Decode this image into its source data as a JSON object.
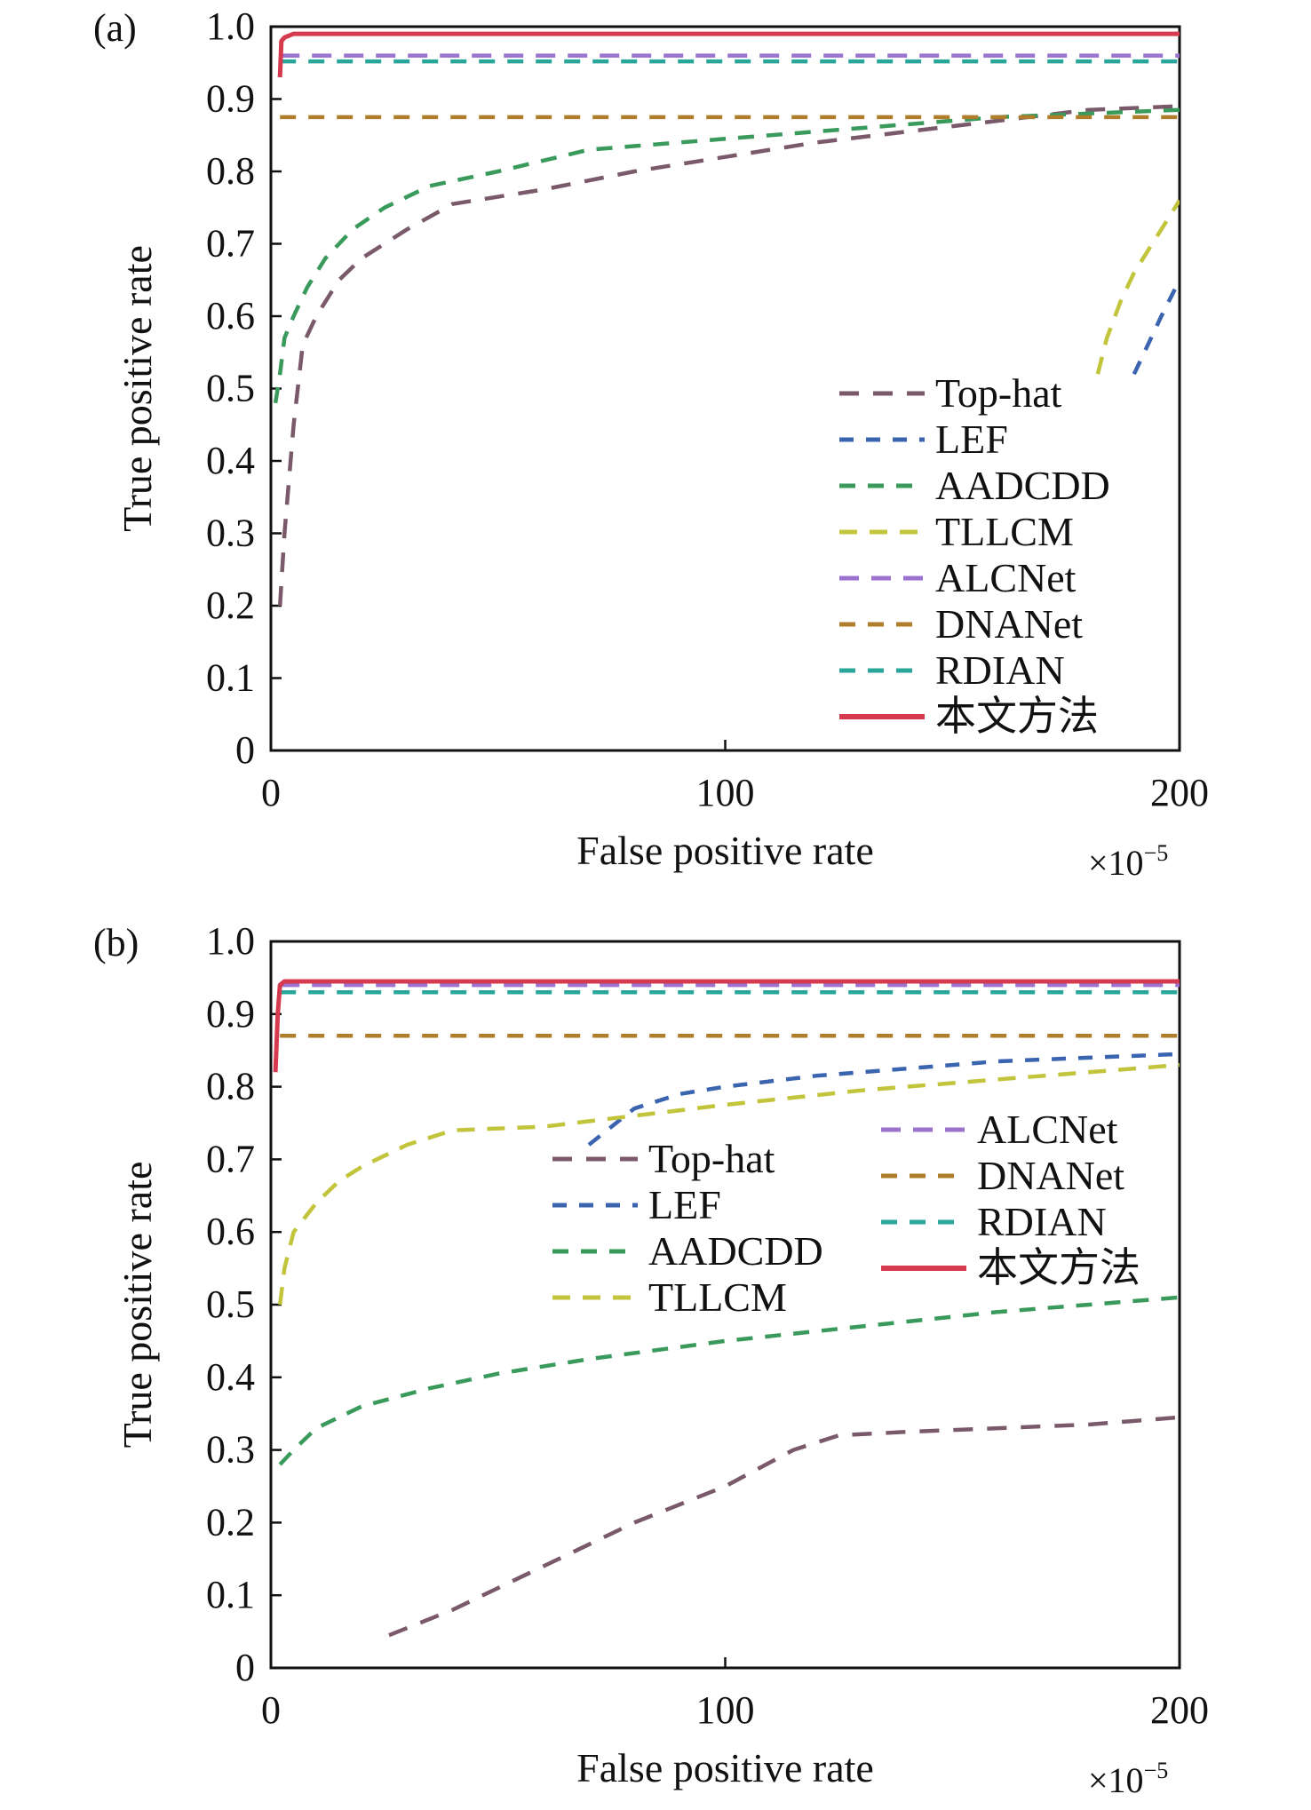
{
  "legend_cjk_label": "本文方法",
  "chart_data": [
    {
      "type": "line",
      "panel_label": "(a)",
      "xlabel": "False positive rate",
      "ylabel": "True positive rate",
      "x_scale_note": "×10",
      "x_scale_exponent": "−5",
      "xlim": [
        0,
        200
      ],
      "ylim": [
        0,
        1.0
      ],
      "x_ticks": [
        "0",
        "100",
        "200"
      ],
      "y_ticks": [
        "0",
        "0.1",
        "0.2",
        "0.3",
        "0.4",
        "0.5",
        "0.6",
        "0.7",
        "0.8",
        "0.9",
        "1.0"
      ],
      "legend_position": "lower-right",
      "series": [
        {
          "name": "Top-hat",
          "color": "#7a5a6a",
          "style": "dashed",
          "x": [
            2,
            3,
            5,
            7,
            10,
            15,
            20,
            30,
            40,
            60,
            80,
            100,
            120,
            140,
            160,
            180,
            200
          ],
          "y": [
            0.2,
            0.3,
            0.45,
            0.56,
            0.6,
            0.65,
            0.68,
            0.72,
            0.755,
            0.775,
            0.8,
            0.82,
            0.84,
            0.855,
            0.87,
            0.885,
            0.89
          ]
        },
        {
          "name": "LEF",
          "color": "#3b64b0",
          "style": "dashed",
          "x": [
            190,
            193,
            196,
            200
          ],
          "y": [
            0.52,
            0.56,
            0.6,
            0.65
          ]
        },
        {
          "name": "AADCDD",
          "color": "#3a9a5c",
          "style": "dashed",
          "x": [
            1,
            2,
            3,
            5,
            8,
            12,
            18,
            25,
            35,
            50,
            70,
            100,
            130,
            160,
            200
          ],
          "y": [
            0.48,
            0.52,
            0.57,
            0.6,
            0.64,
            0.68,
            0.72,
            0.75,
            0.78,
            0.8,
            0.83,
            0.845,
            0.86,
            0.875,
            0.885
          ]
        },
        {
          "name": "TLLCM",
          "color": "#c2c43c",
          "style": "dashed",
          "x": [
            182,
            184,
            187,
            190,
            194,
            197,
            200
          ],
          "y": [
            0.52,
            0.57,
            0.62,
            0.66,
            0.7,
            0.73,
            0.76
          ]
        },
        {
          "name": "ALCNet",
          "color": "#9b72cf",
          "style": "dashed",
          "x": [
            2,
            200
          ],
          "y": [
            0.96,
            0.96
          ]
        },
        {
          "name": "DNANet",
          "color": "#b07d2a",
          "style": "dashed",
          "x": [
            2,
            200
          ],
          "y": [
            0.875,
            0.875
          ]
        },
        {
          "name": "RDIAN",
          "color": "#2aa59a",
          "style": "dashed",
          "x": [
            2,
            200
          ],
          "y": [
            0.952,
            0.952
          ]
        },
        {
          "name": "本文方法",
          "color": "#d63a4e",
          "style": "solid",
          "x": [
            2,
            2.3,
            3,
            5,
            200
          ],
          "y": [
            0.93,
            0.98,
            0.985,
            0.99,
            0.99
          ]
        }
      ]
    },
    {
      "type": "line",
      "panel_label": "(b)",
      "xlabel": "False positive rate",
      "ylabel": "True positive rate",
      "x_scale_note": "×10",
      "x_scale_exponent": "−5",
      "xlim": [
        0,
        200
      ],
      "ylim": [
        0,
        1.0
      ],
      "x_ticks": [
        "0",
        "100",
        "200"
      ],
      "y_ticks": [
        "0",
        "0.1",
        "0.2",
        "0.3",
        "0.4",
        "0.5",
        "0.6",
        "0.7",
        "0.8",
        "0.9",
        "1.0"
      ],
      "legend_position": "center",
      "series": [
        {
          "name": "Top-hat",
          "color": "#7a5a6a",
          "style": "dashed",
          "x": [
            26,
            40,
            60,
            80,
            100,
            115,
            125,
            140,
            160,
            180,
            200
          ],
          "y": [
            0.045,
            0.08,
            0.14,
            0.2,
            0.25,
            0.3,
            0.32,
            0.325,
            0.33,
            0.335,
            0.345
          ]
        },
        {
          "name": "LEF",
          "color": "#3b64b0",
          "style": "dashed",
          "x": [
            70,
            80,
            90,
            100,
            120,
            140,
            160,
            180,
            200
          ],
          "y": [
            0.72,
            0.77,
            0.79,
            0.8,
            0.815,
            0.825,
            0.835,
            0.84,
            0.845
          ]
        },
        {
          "name": "AADCDD",
          "color": "#3a9a5c",
          "style": "dashed",
          "x": [
            2,
            5,
            10,
            20,
            35,
            50,
            70,
            100,
            130,
            160,
            200
          ],
          "y": [
            0.28,
            0.3,
            0.33,
            0.36,
            0.385,
            0.405,
            0.425,
            0.45,
            0.47,
            0.49,
            0.51
          ]
        },
        {
          "name": "TLLCM",
          "color": "#c2c43c",
          "style": "dashed",
          "x": [
            2,
            3,
            5,
            10,
            15,
            20,
            30,
            40,
            60,
            80,
            100,
            130,
            160,
            200
          ],
          "y": [
            0.5,
            0.55,
            0.6,
            0.64,
            0.67,
            0.69,
            0.72,
            0.74,
            0.745,
            0.76,
            0.775,
            0.795,
            0.81,
            0.83
          ]
        },
        {
          "name": "ALCNet",
          "color": "#9b72cf",
          "style": "dashed",
          "x": [
            2,
            200
          ],
          "y": [
            0.94,
            0.94
          ]
        },
        {
          "name": "DNANet",
          "color": "#b07d2a",
          "style": "dashed",
          "x": [
            2,
            200
          ],
          "y": [
            0.87,
            0.87
          ]
        },
        {
          "name": "RDIAN",
          "color": "#2aa59a",
          "style": "dashed",
          "x": [
            2,
            200
          ],
          "y": [
            0.93,
            0.93
          ]
        },
        {
          "name": "本文方法",
          "color": "#d63a4e",
          "style": "solid",
          "x": [
            1,
            1.5,
            2,
            3,
            200
          ],
          "y": [
            0.82,
            0.9,
            0.94,
            0.945,
            0.945
          ]
        }
      ]
    }
  ]
}
